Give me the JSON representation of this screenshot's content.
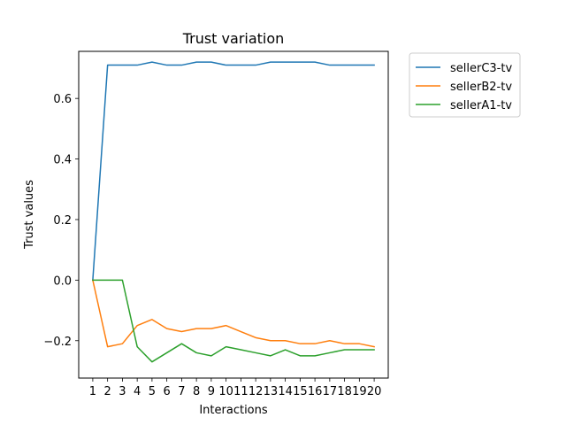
{
  "chart_data": {
    "type": "line",
    "title": "Trust variation",
    "xlabel": "Interactions",
    "ylabel": "Trust values",
    "x": [
      1,
      2,
      3,
      4,
      5,
      6,
      7,
      8,
      9,
      10,
      11,
      12,
      13,
      14,
      15,
      16,
      17,
      18,
      19,
      20
    ],
    "xticks": [
      "1",
      "2",
      "3",
      "4",
      "5",
      "6",
      "7",
      "8",
      "9",
      "10",
      "11",
      "12",
      "13",
      "14",
      "15",
      "16",
      "17",
      "18",
      "19",
      "20"
    ],
    "yticks": [
      -0.2,
      0.0,
      0.2,
      0.4,
      0.6
    ],
    "ytick_labels": [
      "−0.2",
      "0.0",
      "0.2",
      "0.4",
      "0.6"
    ],
    "xlim": [
      0.05,
      20.95
    ],
    "ylim": [
      -0.3235,
      0.7555
    ],
    "grid": false,
    "legend_position": "outside top-right",
    "series": [
      {
        "name": "sellerC3-tv",
        "color": "#1f77b4",
        "values": [
          0.0,
          0.71,
          0.71,
          0.71,
          0.72,
          0.71,
          0.71,
          0.72,
          0.72,
          0.71,
          0.71,
          0.71,
          0.72,
          0.72,
          0.72,
          0.72,
          0.71,
          0.71,
          0.71,
          0.71
        ]
      },
      {
        "name": "sellerB2-tv",
        "color": "#ff7f0e",
        "values": [
          0.0,
          -0.22,
          -0.21,
          -0.15,
          -0.13,
          -0.16,
          -0.17,
          -0.16,
          -0.16,
          -0.15,
          -0.17,
          -0.19,
          -0.2,
          -0.2,
          -0.21,
          -0.21,
          -0.2,
          -0.21,
          -0.21,
          -0.22
        ]
      },
      {
        "name": "sellerA1-tv",
        "color": "#2ca02c",
        "values": [
          0.0,
          0.0,
          0.0,
          -0.22,
          -0.27,
          -0.24,
          -0.21,
          -0.24,
          -0.25,
          -0.22,
          -0.23,
          -0.24,
          -0.25,
          -0.23,
          -0.25,
          -0.25,
          -0.24,
          -0.23,
          -0.23,
          -0.23
        ]
      }
    ]
  }
}
